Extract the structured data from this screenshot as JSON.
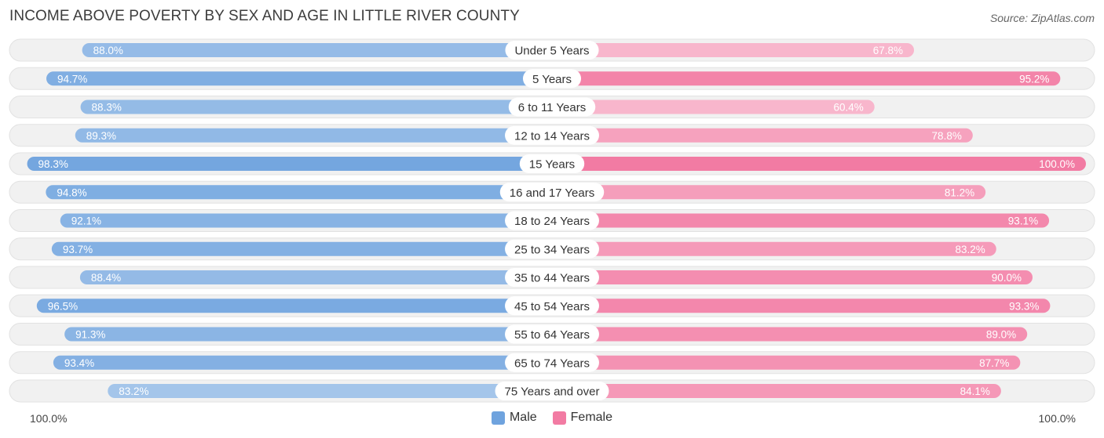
{
  "chart_data": {
    "type": "bar",
    "orientation": "horizontal-diverging",
    "title": "INCOME ABOVE POVERTY BY SEX AND AGE IN LITTLE RIVER COUNTY",
    "source": "Source: ZipAtlas.com",
    "categories": [
      "Under 5 Years",
      "5 Years",
      "6 to 11 Years",
      "12 to 14 Years",
      "15 Years",
      "16 and 17 Years",
      "18 to 24 Years",
      "25 to 34 Years",
      "35 to 44 Years",
      "45 to 54 Years",
      "55 to 64 Years",
      "65 to 74 Years",
      "75 Years and over"
    ],
    "series": [
      {
        "name": "Male",
        "color": "#6fa3de",
        "values": [
          88.0,
          94.7,
          88.3,
          89.3,
          98.3,
          94.8,
          92.1,
          93.7,
          88.4,
          96.5,
          91.3,
          93.4,
          83.2
        ],
        "labels": [
          "88.0%",
          "94.7%",
          "88.3%",
          "89.3%",
          "98.3%",
          "94.8%",
          "92.1%",
          "93.7%",
          "88.4%",
          "96.5%",
          "91.3%",
          "93.4%",
          "83.2%"
        ]
      },
      {
        "name": "Female",
        "color": "#f27ba3",
        "values": [
          67.8,
          95.2,
          60.4,
          78.8,
          100.0,
          81.2,
          93.1,
          83.2,
          90.0,
          93.3,
          89.0,
          87.7,
          84.1
        ],
        "labels": [
          "67.8%",
          "95.2%",
          "60.4%",
          "78.8%",
          "100.0%",
          "81.2%",
          "93.1%",
          "83.2%",
          "90.0%",
          "93.3%",
          "89.0%",
          "87.7%",
          "84.1%"
        ]
      }
    ],
    "axis": {
      "left_label": "100.0%",
      "right_label": "100.0%",
      "range": [
        0,
        100
      ]
    },
    "legend": {
      "position": "bottom-center",
      "items": [
        "Male",
        "Female"
      ]
    }
  }
}
